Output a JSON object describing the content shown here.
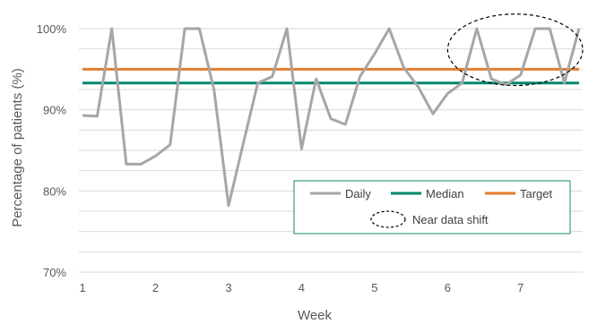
{
  "colors": {
    "daily": "#a6a6a6",
    "median": "#00876c",
    "target": "#e27d2e",
    "grid": "#d9d9d9",
    "legend_border": "#1a8a6b"
  },
  "chart_data": {
    "type": "line",
    "xlabel": "Week",
    "ylabel": "Percentage of patients (%)",
    "xlim": [
      0.95,
      7.85
    ],
    "ylim": [
      70,
      100
    ],
    "y_ticks": [
      "70%",
      "80%",
      "90%",
      "100%"
    ],
    "x_ticks": [
      "1",
      "2",
      "3",
      "4",
      "5",
      "6",
      "7"
    ],
    "grid": "horizontal",
    "legend_position": "bottom-right",
    "series": [
      {
        "name": "Daily",
        "color": "#a6a6a6",
        "x": [
          1.0,
          1.2,
          1.4,
          1.6,
          1.8,
          2.0,
          2.2,
          2.4,
          2.6,
          2.8,
          3.0,
          3.2,
          3.4,
          3.6,
          3.8,
          4.0,
          4.2,
          4.4,
          4.6,
          4.8,
          5.0,
          5.2,
          5.4,
          5.6,
          5.8,
          6.0,
          6.2,
          6.4,
          6.6,
          6.8,
          7.0,
          7.2,
          7.4,
          7.6,
          7.8
        ],
        "y": [
          89.3,
          89.2,
          100,
          83.3,
          83.3,
          84.3,
          85.7,
          100,
          100,
          92.5,
          78.2,
          85.8,
          93.3,
          94.1,
          100,
          85.2,
          93.8,
          88.9,
          88.2,
          94.1,
          96.9,
          100,
          95.2,
          92.8,
          89.5,
          92.0,
          93.3,
          100,
          93.8,
          93.1,
          94.3,
          100,
          100,
          93.3,
          100
        ]
      },
      {
        "name": "Median",
        "color": "#00876c",
        "value": 93.3
      },
      {
        "name": "Target",
        "color": "#e27d2e",
        "value": 95.0
      }
    ],
    "legend": [
      "Daily",
      "Median",
      "Target",
      "Near data shift"
    ],
    "annotation": {
      "label": "Near data shift",
      "style": "dashed-ellipse",
      "x_range": [
        6.0,
        7.85
      ],
      "y_range": [
        93,
        101.8
      ]
    }
  }
}
